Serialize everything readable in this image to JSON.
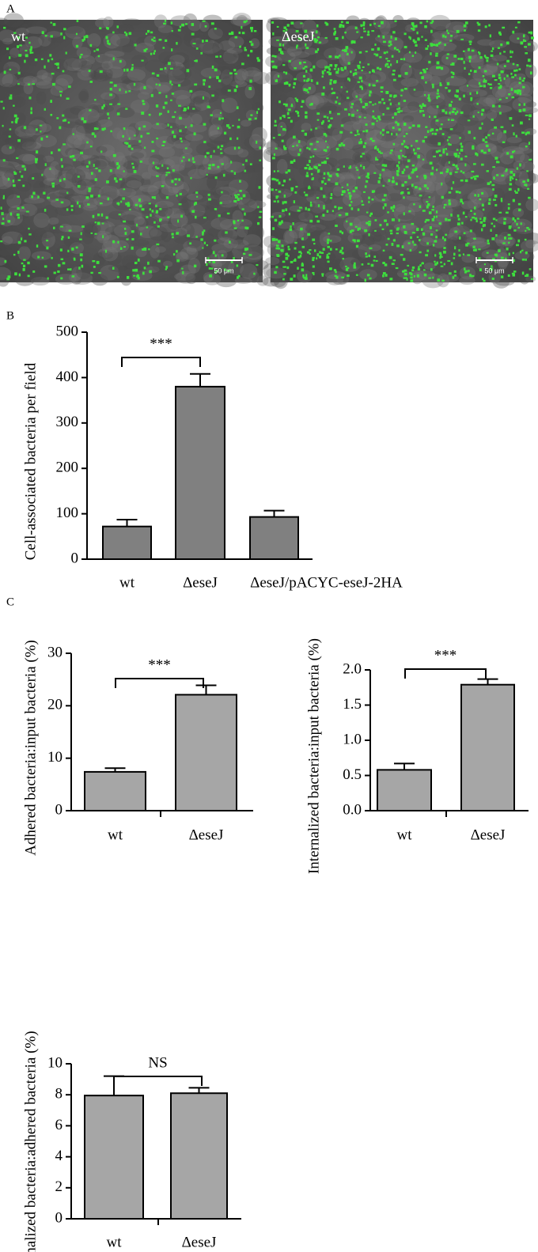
{
  "panels": {
    "a": "A",
    "b": "B",
    "c": "C"
  },
  "images": [
    {
      "label": "wt",
      "scale_bar": "50 μm"
    },
    {
      "label": "ΔeseJ",
      "scale_bar": "50 μm"
    }
  ],
  "chart_data": [
    {
      "type": "bar",
      "ylabel": "Cell-associated bacteria per field",
      "categories": [
        "wt",
        "ΔeseJ",
        "ΔeseJ/pACYC-eseJ-2HA"
      ],
      "values": [
        72,
        380,
        93
      ],
      "errors": [
        15,
        28,
        14
      ],
      "color": "#808080",
      "ylim": [
        0,
        500
      ],
      "yticks": [
        0,
        100,
        200,
        300,
        400,
        500
      ],
      "annotation": "***"
    },
    {
      "type": "bar",
      "ylabel": "Adhered bacteria:input bacteria (%)",
      "categories": [
        "wt",
        "ΔeseJ"
      ],
      "values": [
        7.4,
        22.1
      ],
      "errors": [
        0.7,
        1.8
      ],
      "color": "#a6a6a6",
      "ylim": [
        0,
        30
      ],
      "yticks": [
        0,
        10,
        20,
        30
      ],
      "annotation": "***"
    },
    {
      "type": "bar",
      "ylabel": "Internalized bacteria:input bacteria (%)",
      "categories": [
        "wt",
        "ΔeseJ"
      ],
      "values": [
        0.58,
        1.79
      ],
      "errors": [
        0.09,
        0.08
      ],
      "color": "#a6a6a6",
      "ylim": [
        0,
        2
      ],
      "yticks": [
        {
          "value": 0,
          "label": "0.0"
        },
        0.5,
        {
          "value": 1,
          "label": "1.0"
        },
        1.5,
        {
          "value": 2,
          "label": "2.0"
        }
      ],
      "annotation": "***"
    },
    {
      "type": "bar",
      "ylabel": "Internalized bacteria:adhered bacteria (%)",
      "categories": [
        "wt",
        "ΔeseJ"
      ],
      "values": [
        7.95,
        8.1
      ],
      "errors": [
        1.25,
        0.35
      ],
      "color": "#a6a6a6",
      "ylim": [
        0,
        10
      ],
      "yticks": [
        0,
        2,
        4,
        6,
        8,
        10
      ],
      "annotation": "NS"
    }
  ]
}
